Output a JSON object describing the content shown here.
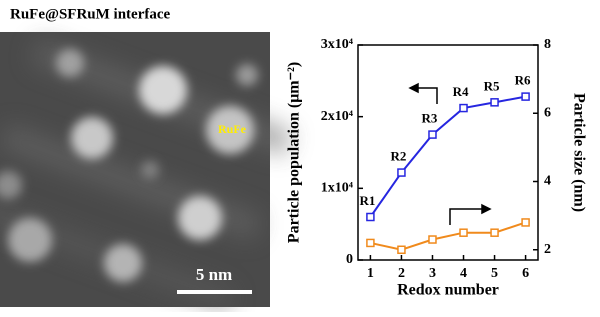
{
  "image_panel": {
    "title": "RuFe@SFRuM interface",
    "label": "RuFe",
    "scale_bar": "5 nm"
  },
  "chart_data": {
    "type": "line",
    "xlabel": "Redox number",
    "ylabel": "Particle population (μm⁻²)",
    "y2label": "Particle size (nm)",
    "x": [
      1,
      2,
      3,
      4,
      5,
      6
    ],
    "xlim": [
      0.6,
      6.4
    ],
    "xticks": [
      1,
      2,
      3,
      4,
      5,
      6
    ],
    "ylim": [
      0,
      30000
    ],
    "yticks": [
      0,
      {
        "value": 10000,
        "label": "1x10⁴"
      },
      {
        "value": 20000,
        "label": "2x10⁴"
      },
      {
        "value": 30000,
        "label": "3x10⁴"
      }
    ],
    "y2lim": [
      1.7,
      8
    ],
    "y2ticks": [
      2,
      4,
      6,
      8
    ],
    "series": [
      {
        "name": "Particle population",
        "color": "#2626e0",
        "values": [
          6000,
          12200,
          17500,
          21200,
          22000,
          22800
        ],
        "value_labels": [
          "R1",
          "R2",
          "R3",
          "R4",
          "R5",
          "R6"
        ]
      },
      {
        "name": "Particle size",
        "color": "#f08a1c",
        "axis": "y2",
        "values": [
          2.2,
          2.0,
          2.3,
          2.5,
          2.5,
          2.8
        ]
      }
    ]
  }
}
